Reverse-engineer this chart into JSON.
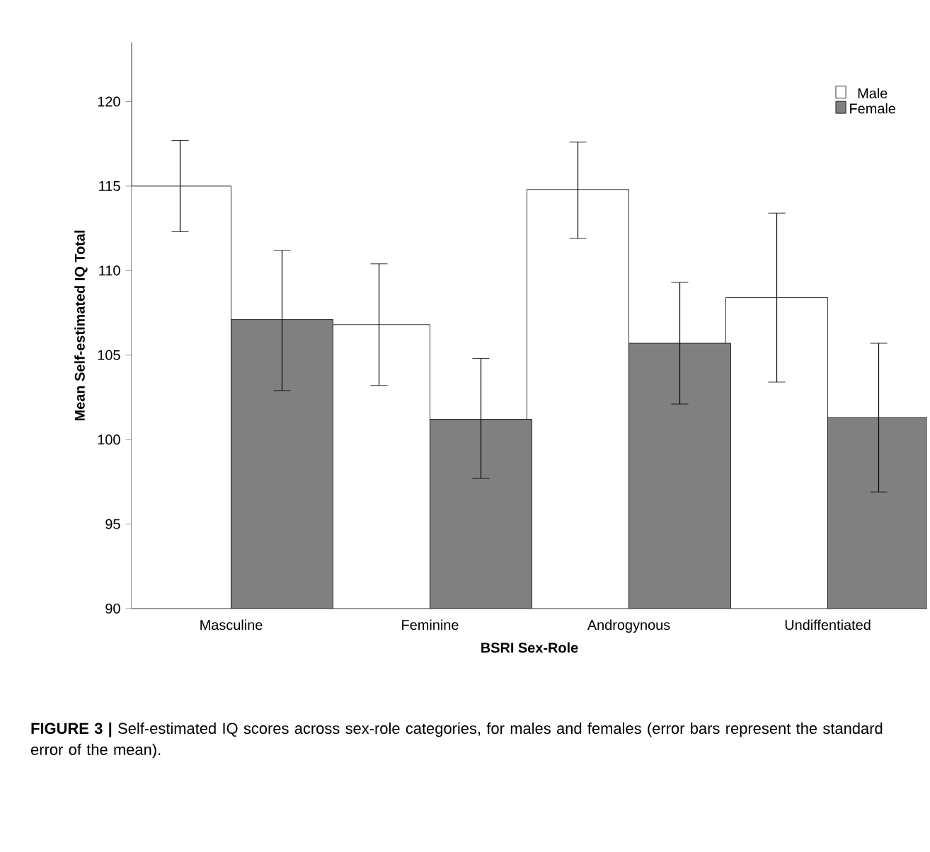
{
  "chart_data": {
    "type": "bar",
    "xlabel": "BSRI Sex-Role",
    "ylabel": "Mean Self-estimated IQ Total",
    "categories": [
      "Masculine",
      "Feminine",
      "Androgynous",
      "Undiffentiated"
    ],
    "series": [
      {
        "name": "Male",
        "color": "#ffffff",
        "values": [
          115.0,
          106.8,
          114.8,
          108.4
        ],
        "errors": [
          [
            112.3,
            117.7
          ],
          [
            103.2,
            110.4
          ],
          [
            111.9,
            117.6
          ],
          [
            103.4,
            113.4
          ]
        ]
      },
      {
        "name": "Female",
        "color": "#808080",
        "values": [
          107.1,
          101.2,
          105.7,
          101.3
        ],
        "errors": [
          [
            102.9,
            111.2
          ],
          [
            97.7,
            104.8
          ],
          [
            102.1,
            109.3
          ],
          [
            96.9,
            105.7
          ]
        ]
      }
    ],
    "ylim": [
      90,
      123.5
    ],
    "yticks": [
      90,
      95,
      100,
      105,
      110,
      115,
      120
    ],
    "grid": false,
    "legend": "top right",
    "annotations": [
      "**FIGURE 3 |** Self-estimated IQ scores across sex-role categories, for males and females (error bars represent the standard error of the mean)."
    ]
  }
}
